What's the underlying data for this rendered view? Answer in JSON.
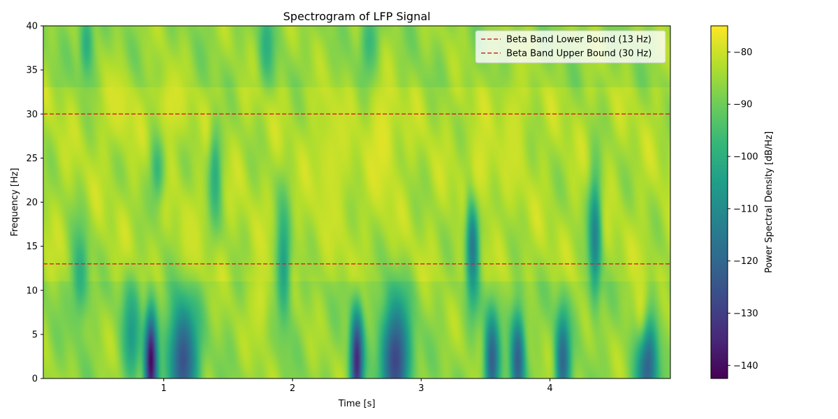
{
  "chart_data": {
    "type": "heatmap",
    "title": "Spectrogram of LFP Signal",
    "xlabel": "Time [s]",
    "ylabel": "Frequency [Hz]",
    "xlim": [
      0.064,
      4.936
    ],
    "ylim": [
      0,
      40
    ],
    "xticks": [
      1,
      2,
      3,
      4
    ],
    "yticks": [
      0,
      5,
      10,
      15,
      20,
      25,
      30,
      35,
      40
    ],
    "colormap": "viridis",
    "colorbar": {
      "label": "Power Spectral Density [dB/Hz]",
      "range": [
        -142.5,
        -75
      ],
      "ticks": [
        -80,
        -90,
        -100,
        -110,
        -120,
        -130,
        -140
      ]
    },
    "hlines": [
      {
        "y": 13,
        "label": "Beta Band Lower Bound (13 Hz)",
        "color": "#d62728",
        "style": "dashed"
      },
      {
        "y": 30,
        "label": "Beta Band Upper Bound (30 Hz)",
        "color": "#d62728",
        "style": "dashed"
      }
    ],
    "legend_position": "top-right",
    "grid": false,
    "background_level_db": -86,
    "features": [
      {
        "t": 0.9,
        "f": 2,
        "db": -141,
        "sigma_t": 0.035,
        "sigma_f": 4
      },
      {
        "t": 1.15,
        "f": 2,
        "db": -125,
        "sigma_t": 0.08,
        "sigma_f": 5
      },
      {
        "t": 2.5,
        "f": 2,
        "db": -135,
        "sigma_t": 0.035,
        "sigma_f": 4
      },
      {
        "t": 2.8,
        "f": 2,
        "db": -128,
        "sigma_t": 0.08,
        "sigma_f": 5
      },
      {
        "t": 3.55,
        "f": 2,
        "db": -122,
        "sigma_t": 0.04,
        "sigma_f": 4
      },
      {
        "t": 3.75,
        "f": 2,
        "db": -122,
        "sigma_t": 0.04,
        "sigma_f": 4
      },
      {
        "t": 4.1,
        "f": 2,
        "db": -120,
        "sigma_t": 0.04,
        "sigma_f": 4
      },
      {
        "t": 4.75,
        "f": 2,
        "db": -125,
        "sigma_t": 0.06,
        "sigma_f": 4
      },
      {
        "t": 3.4,
        "f": 16,
        "db": -118,
        "sigma_t": 0.035,
        "sigma_f": 5
      },
      {
        "t": 4.35,
        "f": 16,
        "db": -112,
        "sigma_t": 0.035,
        "sigma_f": 5
      },
      {
        "t": 1.93,
        "f": 13,
        "db": -104,
        "sigma_t": 0.04,
        "sigma_f": 5
      },
      {
        "t": 1.4,
        "f": 23,
        "db": -100,
        "sigma_t": 0.035,
        "sigma_f": 4
      },
      {
        "t": 0.95,
        "f": 24,
        "db": -98,
        "sigma_t": 0.04,
        "sigma_f": 3
      },
      {
        "t": 0.4,
        "f": 38,
        "db": -100,
        "sigma_t": 0.04,
        "sigma_f": 3
      },
      {
        "t": 1.8,
        "f": 38,
        "db": -100,
        "sigma_t": 0.04,
        "sigma_f": 3
      },
      {
        "t": 2.6,
        "f": 38,
        "db": -98,
        "sigma_t": 0.05,
        "sigma_f": 3
      },
      {
        "t": 0.35,
        "f": 12,
        "db": -100,
        "sigma_t": 0.05,
        "sigma_f": 4
      },
      {
        "t": 0.75,
        "f": 5,
        "db": -105,
        "sigma_t": 0.05,
        "sigma_f": 4
      },
      {
        "t": 2.7,
        "f": 27,
        "db": -78,
        "sigma_t": 0.08,
        "sigma_f": 5
      },
      {
        "t": 3.45,
        "f": 24,
        "db": -79,
        "sigma_t": 0.08,
        "sigma_f": 4
      },
      {
        "t": 3.72,
        "f": 28,
        "db": -80,
        "sigma_t": 0.07,
        "sigma_f": 5
      },
      {
        "t": 0.65,
        "f": 31,
        "db": -79,
        "sigma_t": 0.08,
        "sigma_f": 3
      },
      {
        "t": 1.05,
        "f": 31,
        "db": -79,
        "sigma_t": 0.08,
        "sigma_f": 3
      },
      {
        "t": 1.75,
        "f": 9,
        "db": -80,
        "sigma_t": 0.06,
        "sigma_f": 4
      },
      {
        "t": 4.7,
        "f": 9,
        "db": -80,
        "sigma_t": 0.05,
        "sigma_f": 4
      },
      {
        "t": 2.3,
        "f": 24,
        "db": -80,
        "sigma_t": 0.1,
        "sigma_f": 6
      },
      {
        "t": 1.2,
        "f": 16,
        "db": -80,
        "sigma_t": 0.06,
        "sigma_f": 3
      }
    ]
  }
}
